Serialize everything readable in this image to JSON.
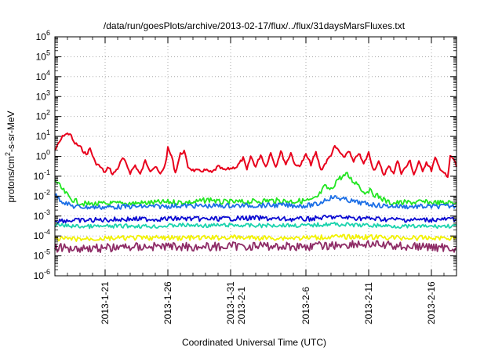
{
  "chart_data": {
    "type": "line",
    "title": "/data/run/goesPlots/archive/2013-02-17/flux/../flux/31daysMarsFluxes.txt",
    "xlabel": "Coordinated Universal Time (UTC)",
    "ylabel_parts": {
      "pre": "protons/cm",
      "sup": "2",
      "post": "-s-sr-MeV"
    },
    "yscale": "log",
    "ylim": [
      1e-06,
      1000000.0
    ],
    "y_ticks": [
      {
        "base": "10",
        "exp": "-6",
        "value": 1e-06
      },
      {
        "base": "10",
        "exp": "-5",
        "value": 1e-05
      },
      {
        "base": "10",
        "exp": "-4",
        "value": 0.0001
      },
      {
        "base": "10",
        "exp": "-3",
        "value": 0.001
      },
      {
        "base": "10",
        "exp": "-2",
        "value": 0.01
      },
      {
        "base": "10",
        "exp": "-1",
        "value": 0.1
      },
      {
        "base": "10",
        "exp": "0",
        "value": 1.0
      },
      {
        "base": "10",
        "exp": "1",
        "value": 10.0
      },
      {
        "base": "10",
        "exp": "2",
        "value": 100.0
      },
      {
        "base": "10",
        "exp": "3",
        "value": 1000.0
      },
      {
        "base": "10",
        "exp": "4",
        "value": 10000.0
      },
      {
        "base": "10",
        "exp": "5",
        "value": 100000.0
      },
      {
        "base": "10",
        "exp": "6",
        "value": 1000000.0
      }
    ],
    "xlim": [
      "2013-01-17",
      "2013-02-18"
    ],
    "x_ticks": [
      {
        "date": "2013-01-21",
        "lines": [
          "2013-1-21"
        ]
      },
      {
        "date": "2013-01-26",
        "lines": [
          "2013-1-26"
        ]
      },
      {
        "date": "2013-01-31",
        "lines": [
          "2013-1-31",
          "2013-2-1"
        ]
      },
      {
        "date": "2013-02-06",
        "lines": [
          "2013-2-6"
        ]
      },
      {
        "date": "2013-02-11",
        "lines": [
          "2013-2-11"
        ]
      },
      {
        "date": "2013-02-16",
        "lines": [
          "2013-2-16"
        ]
      }
    ],
    "grid": true,
    "series": [
      {
        "color": "#e8001c",
        "points": [
          [
            "2013-01-17",
            2.0
          ],
          [
            "2013-01-17.7",
            12
          ],
          [
            "2013-01-18.2",
            14
          ],
          [
            "2013-01-18.5",
            5
          ],
          [
            "2013-01-19",
            3
          ],
          [
            "2013-01-19.5",
            1.2
          ],
          [
            "2013-01-19.8",
            2.5
          ],
          [
            "2013-01-20.2",
            0.5
          ],
          [
            "2013-01-20.6",
            0.3
          ],
          [
            "2013-01-21",
            0.15
          ],
          [
            "2013-01-21.3",
            0.3
          ],
          [
            "2013-01-21.6",
            0.12
          ],
          [
            "2013-01-22",
            0.25
          ],
          [
            "2013-01-22.4",
            0.8
          ],
          [
            "2013-01-22.7",
            0.4
          ],
          [
            "2013-01-23",
            0.15
          ],
          [
            "2013-01-23.4",
            0.35
          ],
          [
            "2013-01-23.8",
            0.12
          ],
          [
            "2013-01-24.2",
            0.6
          ],
          [
            "2013-01-24.6",
            0.2
          ],
          [
            "2013-01-25",
            0.3
          ],
          [
            "2013-01-25.4",
            0.12
          ],
          [
            "2013-01-25.8",
            0.4
          ],
          [
            "2013-01-26",
            2.5
          ],
          [
            "2013-01-26.3",
            1.0
          ],
          [
            "2013-01-26.6",
            0.15
          ],
          [
            "2013-01-27",
            1.3
          ],
          [
            "2013-01-27.3",
            1.8
          ],
          [
            "2013-01-27.6",
            0.3
          ],
          [
            "2013-01-28",
            0.2
          ],
          [
            "2013-01-28.5",
            0.18
          ],
          [
            "2013-01-29",
            0.2
          ],
          [
            "2013-01-29.5",
            0.15
          ],
          [
            "2013-01-30",
            0.3
          ],
          [
            "2013-01-30.5",
            0.2
          ],
          [
            "2013-01-31",
            0.25
          ],
          [
            "2013-01-31.5",
            0.3
          ],
          [
            "2013-02-01",
            0.8
          ],
          [
            "2013-02-01.3",
            0.2
          ],
          [
            "2013-02-01.6",
            1.0
          ],
          [
            "2013-02-02",
            0.3
          ],
          [
            "2013-02-02.4",
            1.2
          ],
          [
            "2013-02-02.8",
            0.3
          ],
          [
            "2013-02-03.2",
            1.5
          ],
          [
            "2013-02-03.6",
            0.3
          ],
          [
            "2013-02-04",
            1.8
          ],
          [
            "2013-02-04.4",
            0.4
          ],
          [
            "2013-02-04.8",
            1.5
          ],
          [
            "2013-02-05.2",
            0.3
          ],
          [
            "2013-02-05.6",
            0.4
          ],
          [
            "2013-02-06",
            1.2
          ],
          [
            "2013-02-06.4",
            0.4
          ],
          [
            "2013-02-06.8",
            1.5
          ],
          [
            "2013-02-07.2",
            0.2
          ],
          [
            "2013-02-07.6",
            0.5
          ],
          [
            "2013-02-08",
            1.2
          ],
          [
            "2013-02-08.3",
            3.0
          ],
          [
            "2013-02-08.6",
            2.0
          ],
          [
            "2013-02-09",
            0.8
          ],
          [
            "2013-02-09.4",
            2.0
          ],
          [
            "2013-02-09.8",
            0.5
          ],
          [
            "2013-02-10.2",
            1.5
          ],
          [
            "2013-02-10.6",
            0.4
          ],
          [
            "2013-02-11",
            1.5
          ],
          [
            "2013-02-11.4",
            0.2
          ],
          [
            "2013-02-11.8",
            0.5
          ],
          [
            "2013-02-12.2",
            0.12
          ],
          [
            "2013-02-12.6",
            0.3
          ],
          [
            "2013-02-13",
            0.15
          ],
          [
            "2013-02-13.3",
            0.6
          ],
          [
            "2013-02-13.6",
            0.15
          ],
          [
            "2013-02-14",
            0.3
          ],
          [
            "2013-02-14.3",
            0.6
          ],
          [
            "2013-02-14.6",
            0.12
          ],
          [
            "2013-02-15",
            0.5
          ],
          [
            "2013-02-15.3",
            0.2
          ],
          [
            "2013-02-15.6",
            0.5
          ],
          [
            "2013-02-16",
            0.2
          ],
          [
            "2013-02-16.3",
            0.8
          ],
          [
            "2013-02-16.6",
            0.3
          ],
          [
            "2013-02-17",
            0.15
          ],
          [
            "2013-02-17.3",
            0.08
          ],
          [
            "2013-02-17.5",
            1.0
          ],
          [
            "2013-02-17.8",
            0.7
          ],
          [
            "2013-02-18",
            0.3
          ]
        ]
      },
      {
        "color": "#21e621",
        "points": [
          [
            "2013-01-17",
            0.07
          ],
          [
            "2013-01-17.4",
            0.03
          ],
          [
            "2013-01-17.8",
            0.015
          ],
          [
            "2013-01-18.2",
            0.008
          ],
          [
            "2013-01-18.8",
            0.005
          ],
          [
            "2013-01-19.5",
            0.004
          ],
          [
            "2013-01-20.5",
            0.004
          ],
          [
            "2013-01-22",
            0.0042
          ],
          [
            "2013-01-24",
            0.0045
          ],
          [
            "2013-01-26",
            0.005
          ],
          [
            "2013-01-28",
            0.0048
          ],
          [
            "2013-01-29.5",
            0.007
          ],
          [
            "2013-01-30",
            0.005
          ],
          [
            "2013-02-01",
            0.005
          ],
          [
            "2013-02-03",
            0.006
          ],
          [
            "2013-02-05",
            0.0055
          ],
          [
            "2013-02-06.5",
            0.006
          ],
          [
            "2013-02-07",
            0.01
          ],
          [
            "2013-02-07.5",
            0.03
          ],
          [
            "2013-02-08",
            0.02
          ],
          [
            "2013-02-08.5",
            0.07
          ],
          [
            "2013-02-09",
            0.1
          ],
          [
            "2013-02-09.3",
            0.12
          ],
          [
            "2013-02-09.7",
            0.06
          ],
          [
            "2013-02-10.2",
            0.04
          ],
          [
            "2013-02-10.6",
            0.015
          ],
          [
            "2013-02-11",
            0.02
          ],
          [
            "2013-02-11.5",
            0.012
          ],
          [
            "2013-02-12",
            0.008
          ],
          [
            "2013-02-12.5",
            0.005
          ],
          [
            "2013-02-13",
            0.0045
          ],
          [
            "2013-02-15",
            0.005
          ],
          [
            "2013-02-17",
            0.0045
          ],
          [
            "2013-02-18",
            0.005
          ]
        ]
      },
      {
        "color": "#1c6fe6",
        "points": [
          [
            "2013-01-17",
            0.012
          ],
          [
            "2013-01-17.5",
            0.006
          ],
          [
            "2013-01-18",
            0.004
          ],
          [
            "2013-01-18.5",
            0.003
          ],
          [
            "2013-01-19.5",
            0.0028
          ],
          [
            "2013-01-21",
            0.0028
          ],
          [
            "2013-01-23",
            0.003
          ],
          [
            "2013-01-25",
            0.003
          ],
          [
            "2013-01-27",
            0.0033
          ],
          [
            "2013-01-29",
            0.0032
          ],
          [
            "2013-01-31",
            0.0033
          ],
          [
            "2013-02-02",
            0.0034
          ],
          [
            "2013-02-04",
            0.0035
          ],
          [
            "2013-02-06",
            0.0033
          ],
          [
            "2013-02-07",
            0.004
          ],
          [
            "2013-02-07.6",
            0.007
          ],
          [
            "2013-02-08.2",
            0.009
          ],
          [
            "2013-02-09",
            0.007
          ],
          [
            "2013-02-10",
            0.005
          ],
          [
            "2013-02-11",
            0.004
          ],
          [
            "2013-02-12",
            0.0033
          ],
          [
            "2013-02-14",
            0.003
          ],
          [
            "2013-02-16",
            0.003
          ],
          [
            "2013-02-18",
            0.0032
          ]
        ]
      },
      {
        "color": "#0a0ad2",
        "points": [
          [
            "2013-01-17",
            0.0006
          ],
          [
            "2013-01-19",
            0.0006
          ],
          [
            "2013-01-21",
            0.00065
          ],
          [
            "2013-01-23",
            0.0007
          ],
          [
            "2013-01-25",
            0.0007
          ],
          [
            "2013-01-27",
            0.00075
          ],
          [
            "2013-01-29",
            0.0007
          ],
          [
            "2013-01-31",
            0.00075
          ],
          [
            "2013-02-02",
            0.0008
          ],
          [
            "2013-02-04",
            0.0007
          ],
          [
            "2013-02-06",
            0.0007
          ],
          [
            "2013-02-08",
            0.0009
          ],
          [
            "2013-02-10",
            0.0008
          ],
          [
            "2013-02-12",
            0.0007
          ],
          [
            "2013-02-14",
            0.00065
          ],
          [
            "2013-02-16",
            0.00065
          ],
          [
            "2013-02-18",
            0.0007
          ]
        ]
      },
      {
        "color": "#1bd3ad",
        "points": [
          [
            "2013-01-17",
            0.00035
          ],
          [
            "2013-01-19",
            0.0003
          ],
          [
            "2013-01-21",
            0.0003
          ],
          [
            "2013-01-23",
            0.00032
          ],
          [
            "2013-01-25",
            0.0003
          ],
          [
            "2013-01-27",
            0.00035
          ],
          [
            "2013-01-29",
            0.00033
          ],
          [
            "2013-01-31",
            0.00035
          ],
          [
            "2013-02-02",
            0.00033
          ],
          [
            "2013-02-04",
            0.00035
          ],
          [
            "2013-02-06",
            0.00033
          ],
          [
            "2013-02-08",
            0.0004
          ],
          [
            "2013-02-10",
            0.00035
          ],
          [
            "2013-02-12",
            0.00033
          ],
          [
            "2013-02-14",
            0.0003
          ],
          [
            "2013-02-16",
            0.0003
          ],
          [
            "2013-02-18",
            0.00032
          ]
        ]
      },
      {
        "color": "#f2f200",
        "points": [
          [
            "2013-01-17",
            7e-05
          ],
          [
            "2013-01-19",
            7e-05
          ],
          [
            "2013-01-21",
            7.5e-05
          ],
          [
            "2013-01-23",
            8e-05
          ],
          [
            "2013-01-25",
            8e-05
          ],
          [
            "2013-01-27",
            8e-05
          ],
          [
            "2013-01-29",
            8e-05
          ],
          [
            "2013-01-31",
            8.5e-05
          ],
          [
            "2013-02-02",
            8e-05
          ],
          [
            "2013-02-04",
            8e-05
          ],
          [
            "2013-02-06",
            8e-05
          ],
          [
            "2013-02-08",
            9e-05
          ],
          [
            "2013-02-10",
            9e-05
          ],
          [
            "2013-02-12",
            8.5e-05
          ],
          [
            "2013-02-14",
            8e-05
          ],
          [
            "2013-02-16",
            8e-05
          ],
          [
            "2013-02-18",
            8e-05
          ]
        ]
      },
      {
        "color": "#8e2c66",
        "points": [
          [
            "2013-01-17",
            2.5e-05
          ],
          [
            "2013-01-19",
            2.5e-05
          ],
          [
            "2013-01-21",
            2.5e-05
          ],
          [
            "2013-01-23",
            2.8e-05
          ],
          [
            "2013-01-25",
            3e-05
          ],
          [
            "2013-01-27",
            3e-05
          ],
          [
            "2013-01-29",
            2.8e-05
          ],
          [
            "2013-01-31",
            3e-05
          ],
          [
            "2013-02-02",
            3.2e-05
          ],
          [
            "2013-02-04",
            3e-05
          ],
          [
            "2013-02-06",
            3e-05
          ],
          [
            "2013-02-08",
            3.3e-05
          ],
          [
            "2013-02-10",
            4e-05
          ],
          [
            "2013-02-12",
            3.5e-05
          ],
          [
            "2013-02-14",
            3e-05
          ],
          [
            "2013-02-16",
            2.8e-05
          ],
          [
            "2013-02-18",
            2.5e-05
          ]
        ]
      }
    ]
  }
}
